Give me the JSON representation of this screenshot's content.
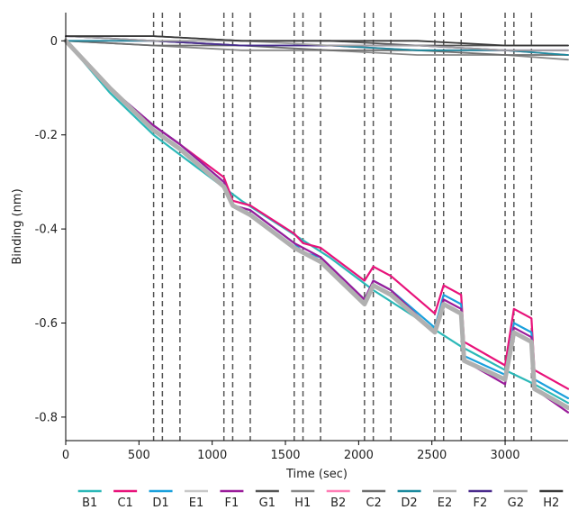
{
  "chart_data": {
    "type": "line",
    "xlabel": "Time (sec)",
    "ylabel": "Binding (nm)",
    "xlim": [
      0,
      3430
    ],
    "ylim": [
      -0.85,
      0.06
    ],
    "x_ticks": [
      0,
      500,
      1000,
      1500,
      2000,
      2500,
      3000
    ],
    "x_tick_labels": [
      "0",
      "500",
      "1000",
      "1500",
      "2000",
      "2500",
      "3000"
    ],
    "y_ticks": [
      0,
      -0.2,
      -0.4,
      -0.6,
      -0.8
    ],
    "y_tick_labels": [
      "0",
      "-0.2",
      "-0.4",
      "-0.6",
      "-0.8"
    ],
    "grid": false,
    "legend_position": "bottom",
    "vertical_markers": [
      600,
      660,
      780,
      1080,
      1140,
      1260,
      1560,
      1620,
      1740,
      2040,
      2100,
      2220,
      2520,
      2580,
      2700,
      3000,
      3060,
      3180
    ],
    "series": [
      {
        "name": "B1",
        "color": "#2bb8b8",
        "points": [
          [
            0,
            0
          ],
          [
            300,
            -0.11
          ],
          [
            600,
            -0.2
          ],
          [
            900,
            -0.27
          ],
          [
            1200,
            -0.34
          ],
          [
            1500,
            -0.4
          ],
          [
            1800,
            -0.46
          ],
          [
            2100,
            -0.53
          ],
          [
            2400,
            -0.59
          ],
          [
            2700,
            -0.65
          ],
          [
            3000,
            -0.7
          ],
          [
            3200,
            -0.73
          ],
          [
            3430,
            -0.77
          ]
        ]
      },
      {
        "name": "C1",
        "color": "#e8127a",
        "points": [
          [
            0,
            0
          ],
          [
            300,
            -0.1
          ],
          [
            600,
            -0.18
          ],
          [
            780,
            -0.22
          ],
          [
            1080,
            -0.29
          ],
          [
            1140,
            -0.34
          ],
          [
            1260,
            -0.35
          ],
          [
            1560,
            -0.41
          ],
          [
            1620,
            -0.43
          ],
          [
            1740,
            -0.44
          ],
          [
            2040,
            -0.51
          ],
          [
            2100,
            -0.48
          ],
          [
            2220,
            -0.5
          ],
          [
            2520,
            -0.58
          ],
          [
            2580,
            -0.52
          ],
          [
            2700,
            -0.54
          ],
          [
            2720,
            -0.64
          ],
          [
            3000,
            -0.69
          ],
          [
            3060,
            -0.57
          ],
          [
            3180,
            -0.59
          ],
          [
            3200,
            -0.7
          ],
          [
            3430,
            -0.74
          ]
        ]
      },
      {
        "name": "D1",
        "color": "#1aa0dc",
        "points": [
          [
            0,
            0
          ],
          [
            300,
            -0.1
          ],
          [
            600,
            -0.18
          ],
          [
            780,
            -0.22
          ],
          [
            1080,
            -0.3
          ],
          [
            1140,
            -0.35
          ],
          [
            1260,
            -0.36
          ],
          [
            1560,
            -0.43
          ],
          [
            1620,
            -0.45
          ],
          [
            1740,
            -0.46
          ],
          [
            2040,
            -0.55
          ],
          [
            2100,
            -0.51
          ],
          [
            2220,
            -0.53
          ],
          [
            2520,
            -0.61
          ],
          [
            2580,
            -0.54
          ],
          [
            2700,
            -0.56
          ],
          [
            2720,
            -0.67
          ],
          [
            3000,
            -0.71
          ],
          [
            3060,
            -0.6
          ],
          [
            3180,
            -0.62
          ],
          [
            3200,
            -0.72
          ],
          [
            3430,
            -0.76
          ]
        ]
      },
      {
        "name": "E1",
        "color": "#c8c8c8",
        "points": [
          [
            0,
            0.01
          ],
          [
            600,
            0.0
          ],
          [
            1200,
            -0.01
          ],
          [
            1800,
            -0.01
          ],
          [
            2400,
            -0.02
          ],
          [
            3000,
            -0.02
          ],
          [
            3430,
            -0.03
          ]
        ]
      },
      {
        "name": "F1",
        "color": "#9a1c9a",
        "points": [
          [
            0,
            0
          ],
          [
            300,
            -0.1
          ],
          [
            600,
            -0.18
          ],
          [
            780,
            -0.22
          ],
          [
            1080,
            -0.3
          ],
          [
            1140,
            -0.35
          ],
          [
            1260,
            -0.36
          ],
          [
            1560,
            -0.43
          ],
          [
            1620,
            -0.44
          ],
          [
            1740,
            -0.46
          ],
          [
            2040,
            -0.55
          ],
          [
            2100,
            -0.51
          ],
          [
            2220,
            -0.53
          ],
          [
            2520,
            -0.62
          ],
          [
            2580,
            -0.55
          ],
          [
            2700,
            -0.57
          ],
          [
            2720,
            -0.68
          ],
          [
            3000,
            -0.73
          ],
          [
            3060,
            -0.61
          ],
          [
            3180,
            -0.63
          ],
          [
            3200,
            -0.74
          ],
          [
            3430,
            -0.79
          ]
        ]
      },
      {
        "name": "G1",
        "color": "#555555",
        "points": [
          [
            0,
            0.01
          ],
          [
            600,
            0.01
          ],
          [
            1200,
            0.0
          ],
          [
            1800,
            0.0
          ],
          [
            2400,
            -0.01
          ],
          [
            3000,
            -0.01
          ],
          [
            3430,
            -0.01
          ]
        ]
      },
      {
        "name": "H1",
        "color": "#888888",
        "points": [
          [
            0,
            0
          ],
          [
            600,
            -0.01
          ],
          [
            1200,
            -0.02
          ],
          [
            1800,
            -0.02
          ],
          [
            2400,
            -0.03
          ],
          [
            3000,
            -0.03
          ],
          [
            3430,
            -0.04
          ]
        ]
      },
      {
        "name": "B2",
        "color": "#ff7eb6",
        "points": [
          [
            0,
            0
          ],
          [
            600,
            0.0
          ],
          [
            1200,
            -0.01
          ],
          [
            1800,
            -0.01
          ],
          [
            2400,
            -0.02
          ],
          [
            3000,
            -0.02
          ],
          [
            3430,
            -0.03
          ]
        ]
      },
      {
        "name": "C2",
        "color": "#6e6e6e",
        "points": [
          [
            0,
            0
          ],
          [
            600,
            -0.01
          ],
          [
            1200,
            -0.01
          ],
          [
            1800,
            -0.02
          ],
          [
            2400,
            -0.02
          ],
          [
            3000,
            -0.03
          ],
          [
            3430,
            -0.03
          ]
        ]
      },
      {
        "name": "D2",
        "color": "#1b8a9e",
        "points": [
          [
            0,
            0
          ],
          [
            600,
            0.0
          ],
          [
            1200,
            -0.01
          ],
          [
            1800,
            -0.01
          ],
          [
            2400,
            -0.02
          ],
          [
            3000,
            -0.02
          ],
          [
            3430,
            -0.03
          ]
        ]
      },
      {
        "name": "E2",
        "color": "#b0b0b0",
        "points": [
          [
            0,
            0
          ],
          [
            300,
            -0.1
          ],
          [
            600,
            -0.19
          ],
          [
            780,
            -0.23
          ],
          [
            1080,
            -0.31
          ],
          [
            1140,
            -0.35
          ],
          [
            1260,
            -0.37
          ],
          [
            1560,
            -0.44
          ],
          [
            1620,
            -0.45
          ],
          [
            1740,
            -0.47
          ],
          [
            2040,
            -0.56
          ],
          [
            2100,
            -0.52
          ],
          [
            2220,
            -0.54
          ],
          [
            2520,
            -0.62
          ],
          [
            2580,
            -0.56
          ],
          [
            2700,
            -0.58
          ],
          [
            2720,
            -0.68
          ],
          [
            3000,
            -0.72
          ],
          [
            3060,
            -0.62
          ],
          [
            3180,
            -0.64
          ],
          [
            3200,
            -0.74
          ],
          [
            3430,
            -0.78
          ]
        ]
      },
      {
        "name": "F2",
        "color": "#4a2a8c",
        "points": [
          [
            0,
            0.01
          ],
          [
            600,
            0.0
          ],
          [
            1200,
            -0.01
          ],
          [
            1800,
            -0.01
          ],
          [
            2400,
            -0.01
          ],
          [
            3000,
            -0.02
          ],
          [
            3430,
            -0.02
          ]
        ]
      },
      {
        "name": "G2",
        "color": "#a0a0a0",
        "points": [
          [
            0,
            0.01
          ],
          [
            600,
            0.0
          ],
          [
            1200,
            0.0
          ],
          [
            1800,
            -0.01
          ],
          [
            2400,
            -0.01
          ],
          [
            3000,
            -0.02
          ],
          [
            3430,
            -0.02
          ]
        ]
      },
      {
        "name": "H2",
        "color": "#3a3a3a",
        "points": [
          [
            0,
            0.01
          ],
          [
            600,
            0.01
          ],
          [
            1200,
            0.0
          ],
          [
            1800,
            0.0
          ],
          [
            2400,
            0.0
          ],
          [
            3000,
            -0.01
          ],
          [
            3430,
            -0.01
          ]
        ]
      }
    ]
  }
}
